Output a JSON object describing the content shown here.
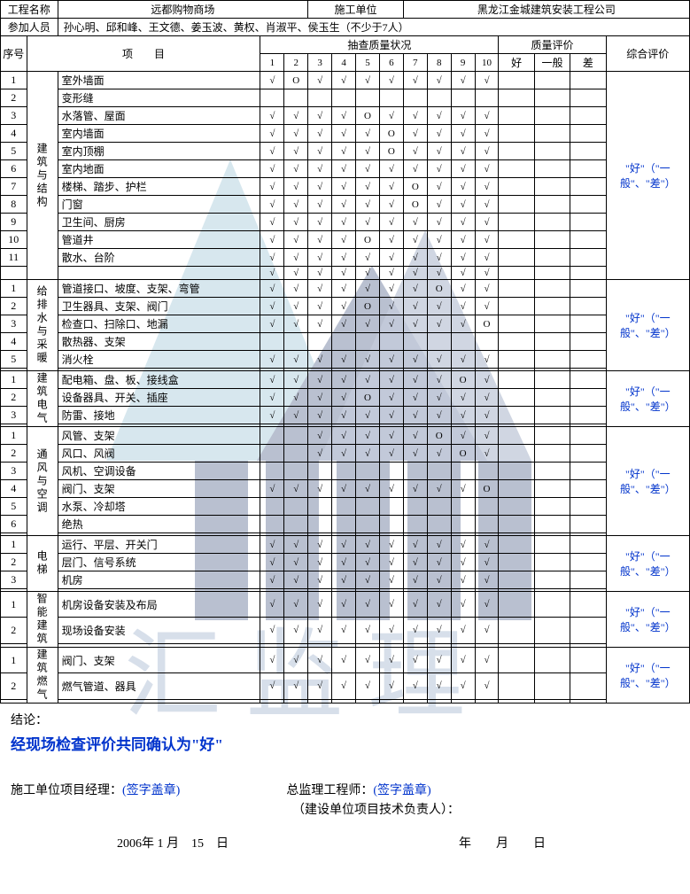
{
  "header": {
    "projNameLbl": "工程名称",
    "projName": "远都购物商场",
    "constUnitLbl": "施工单位",
    "constUnit": "黑龙江金城建筑安装工程公司",
    "participantsLbl": "参加人员",
    "participants": "孙心明、邱和峰、王文德、姜玉波、黄权、肖淑平、侯玉生（不少于7人）"
  },
  "colHdr": {
    "seq": "序号",
    "item": "项　　目",
    "sampling": "抽查质量状况",
    "quality": "质量评价",
    "overall": "综合评价",
    "nums": [
      "1",
      "2",
      "3",
      "4",
      "5",
      "6",
      "7",
      "8",
      "9",
      "10"
    ],
    "good": "好",
    "mid": "一般",
    "bad": "差"
  },
  "evalText": "\"好\"（\"一般\"、\"差\"）",
  "groups": [
    {
      "cat": "建筑与结构",
      "rows": [
        {
          "n": "1",
          "name": "室外墙面",
          "c": [
            "√",
            "O",
            "√",
            "√",
            "√",
            "√",
            "√",
            "√",
            "√",
            "√"
          ]
        },
        {
          "n": "2",
          "name": "变形缝",
          "c": [
            "",
            "",
            "",
            "",
            "",
            "",
            "",
            "",
            "",
            ""
          ]
        },
        {
          "n": "3",
          "name": "水落管、屋面",
          "c": [
            "√",
            "√",
            "√",
            "√",
            "O",
            "√",
            "√",
            "√",
            "√",
            "√"
          ]
        },
        {
          "n": "4",
          "name": "室内墙面",
          "c": [
            "√",
            "√",
            "√",
            "√",
            "√",
            "O",
            "√",
            "√",
            "√",
            "√"
          ]
        },
        {
          "n": "5",
          "name": "室内顶棚",
          "c": [
            "√",
            "√",
            "√",
            "√",
            "√",
            "O",
            "√",
            "√",
            "√",
            "√"
          ]
        },
        {
          "n": "6",
          "name": "室内地面",
          "c": [
            "√",
            "√",
            "√",
            "√",
            "√",
            "√",
            "√",
            "√",
            "√",
            "√"
          ]
        },
        {
          "n": "7",
          "name": "楼梯、踏步、护栏",
          "c": [
            "√",
            "√",
            "√",
            "√",
            "√",
            "√",
            "O",
            "√",
            "√",
            "√"
          ]
        },
        {
          "n": "8",
          "name": "门窗",
          "c": [
            "√",
            "√",
            "√",
            "√",
            "√",
            "√",
            "O",
            "√",
            "√",
            "√"
          ]
        },
        {
          "n": "9",
          "name": "卫生间、厨房",
          "c": [
            "√",
            "√",
            "√",
            "√",
            "√",
            "√",
            "√",
            "√",
            "√",
            "√"
          ]
        },
        {
          "n": "10",
          "name": "管道井",
          "c": [
            "√",
            "√",
            "√",
            "√",
            "O",
            "√",
            "√",
            "√",
            "√",
            "√"
          ]
        },
        {
          "n": "11",
          "name": "散水、台阶",
          "c": [
            "√",
            "√",
            "√",
            "√",
            "√",
            "√",
            "√",
            "√",
            "√",
            "√"
          ]
        },
        {
          "n": "",
          "name": "",
          "c": [
            "√",
            "√",
            "√",
            "√",
            "√",
            "√",
            "√",
            "√",
            "√",
            "√"
          ]
        }
      ]
    },
    {
      "cat": "给排水与采暖",
      "rows": [
        {
          "n": "1",
          "name": "管道接口、坡度、支架、弯管",
          "c": [
            "√",
            "√",
            "√",
            "√",
            "√",
            "√",
            "√",
            "O",
            "√",
            "√"
          ]
        },
        {
          "n": "2",
          "name": "卫生器具、支架、阀门",
          "c": [
            "√",
            "√",
            "√",
            "√",
            "O",
            "√",
            "√",
            "√",
            "√",
            "√"
          ]
        },
        {
          "n": "3",
          "name": "检查口、扫除口、地漏",
          "c": [
            "√",
            "√",
            "√",
            "√",
            "√",
            "√",
            "√",
            "√",
            "√",
            "O"
          ]
        },
        {
          "n": "4",
          "name": "散热器、支架",
          "c": [
            "",
            "",
            "",
            "",
            "",
            "",
            "",
            "",
            "",
            ""
          ]
        },
        {
          "n": "5",
          "name": "消火栓",
          "c": [
            "√",
            "√",
            "√",
            "√",
            "√",
            "√",
            "√",
            "√",
            "√",
            "√"
          ]
        },
        {
          "n": "",
          "name": "",
          "c": [
            "",
            "",
            "",
            "",
            "",
            "",
            "",
            "",
            "",
            ""
          ]
        }
      ]
    },
    {
      "cat": "建筑电气",
      "rows": [
        {
          "n": "1",
          "name": "配电箱、盘、板、接线盒",
          "c": [
            "√",
            "√",
            "√",
            "√",
            "√",
            "√",
            "√",
            "√",
            "O",
            "√"
          ]
        },
        {
          "n": "2",
          "name": "设备器具、开关、插座",
          "c": [
            "√",
            "√",
            "√",
            "√",
            "O",
            "√",
            "√",
            "√",
            "√",
            "√"
          ]
        },
        {
          "n": "3",
          "name": "防雷、接地",
          "c": [
            "√",
            "√",
            "√",
            "√",
            "√",
            "√",
            "√",
            "√",
            "√",
            "√"
          ]
        },
        {
          "n": "",
          "name": "",
          "c": [
            "",
            "",
            "",
            "",
            "",
            "",
            "",
            "",
            "",
            ""
          ]
        }
      ]
    },
    {
      "cat": "通风与空调",
      "rows": [
        {
          "n": "1",
          "name": "风管、支架",
          "c": [
            "",
            "",
            "√",
            "√",
            "√",
            "√",
            "√",
            "O",
            "√",
            "√"
          ]
        },
        {
          "n": "2",
          "name": "风口、风阀",
          "c": [
            "",
            "",
            "√",
            "√",
            "√",
            "√",
            "√",
            "√",
            "O",
            "√"
          ]
        },
        {
          "n": "3",
          "name": "风机、空调设备",
          "c": [
            "",
            "",
            "",
            "",
            "",
            "",
            "",
            "",
            "",
            ""
          ]
        },
        {
          "n": "4",
          "name": "阀门、支架",
          "c": [
            "√",
            "√",
            "√",
            "√",
            "√",
            "√",
            "√",
            "√",
            "√",
            "O"
          ]
        },
        {
          "n": "5",
          "name": "水泵、冷却塔",
          "c": [
            "",
            "",
            "",
            "",
            "",
            "",
            "",
            "",
            "",
            ""
          ]
        },
        {
          "n": "6",
          "name": "绝热",
          "c": [
            "",
            "",
            "",
            "",
            "",
            "",
            "",
            "",
            "",
            ""
          ]
        },
        {
          "n": "",
          "name": "",
          "c": [
            "",
            "",
            "",
            "",
            "",
            "",
            "",
            "",
            "",
            ""
          ]
        }
      ]
    },
    {
      "cat": "电梯",
      "rows": [
        {
          "n": "1",
          "name": "运行、平层、开关门",
          "c": [
            "√",
            "√",
            "√",
            "√",
            "√",
            "√",
            "√",
            "√",
            "√",
            "√"
          ]
        },
        {
          "n": "2",
          "name": "层门、信号系统",
          "c": [
            "√",
            "√",
            "√",
            "√",
            "√",
            "√",
            "√",
            "√",
            "√",
            "√"
          ]
        },
        {
          "n": "3",
          "name": "机房",
          "c": [
            "√",
            "√",
            "√",
            "√",
            "√",
            "√",
            "√",
            "√",
            "√",
            "√"
          ]
        },
        {
          "n": "",
          "name": "",
          "c": [
            "",
            "",
            "",
            "",
            "",
            "",
            "",
            "",
            "",
            ""
          ]
        }
      ]
    },
    {
      "cat": "智能建筑",
      "rows": [
        {
          "n": "1",
          "name": "机房设备安装及布局",
          "c": [
            "√",
            "√",
            "√",
            "√",
            "√",
            "√",
            "√",
            "√",
            "√",
            "√"
          ]
        },
        {
          "n": "2",
          "name": "现场设备安装",
          "c": [
            "√",
            "√",
            "√",
            "√",
            "√",
            "√",
            "√",
            "√",
            "√",
            "√"
          ]
        },
        {
          "n": "",
          "name": "",
          "c": [
            "",
            "",
            "",
            "",
            "",
            "",
            "",
            "",
            "",
            ""
          ]
        }
      ]
    },
    {
      "cat": "建筑燃气",
      "rows": [
        {
          "n": "1",
          "name": "阀门、支架",
          "c": [
            "√",
            "√",
            "√",
            "√",
            "√",
            "√",
            "√",
            "√",
            "√",
            "√"
          ]
        },
        {
          "n": "2",
          "name": "燃气管道、器具",
          "c": [
            "√",
            "√",
            "√",
            "√",
            "√",
            "√",
            "√",
            "√",
            "√",
            "√"
          ]
        },
        {
          "n": "",
          "name": "",
          "c": [
            "",
            "",
            "",
            "",
            "",
            "",
            "",
            "",
            "",
            ""
          ]
        }
      ]
    }
  ],
  "footer": {
    "conclusionLbl": "结论：",
    "conclusion": "经现场检查评价共同确认为\"好\"",
    "sig1Lbl": "施工单位项目经理：",
    "sig1": "(签字盖章)",
    "sig2Lbl": "总监理工程师：",
    "sig2": "(签字盖章)",
    "sig3": "（建设单位项目技术负责人）：",
    "date1": "2006年 1 月　15　日",
    "date2": "年　　月　　日"
  }
}
